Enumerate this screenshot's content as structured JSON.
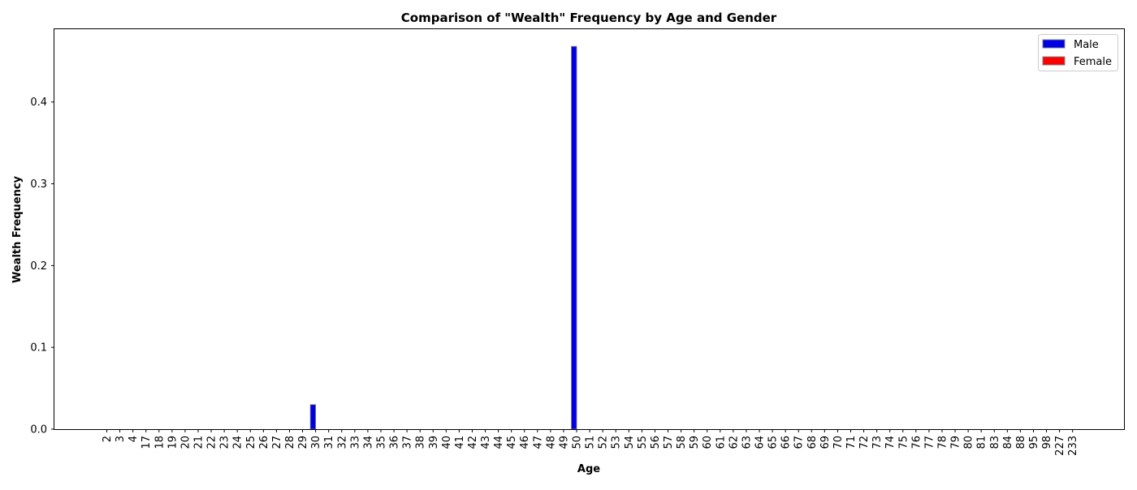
{
  "chart_data": {
    "type": "bar",
    "title": "Comparison of \"Wealth\" Frequency by Age and Gender",
    "xlabel": "Age",
    "ylabel": "Wealth Frequency",
    "ylim": [
      0,
      0.49
    ],
    "yticks": [
      "0.0",
      "0.1",
      "0.2",
      "0.3",
      "0.4"
    ],
    "categories": [
      "2",
      "3",
      "4",
      "17",
      "18",
      "19",
      "20",
      "21",
      "22",
      "23",
      "24",
      "25",
      "26",
      "27",
      "28",
      "29",
      "30",
      "31",
      "32",
      "33",
      "34",
      "35",
      "36",
      "37",
      "38",
      "39",
      "40",
      "41",
      "42",
      "43",
      "44",
      "45",
      "46",
      "47",
      "48",
      "49",
      "50",
      "51",
      "52",
      "53",
      "54",
      "55",
      "56",
      "57",
      "58",
      "59",
      "60",
      "61",
      "62",
      "63",
      "64",
      "65",
      "66",
      "67",
      "68",
      "69",
      "70",
      "71",
      "72",
      "73",
      "74",
      "75",
      "76",
      "77",
      "78",
      "79",
      "80",
      "81",
      "83",
      "84",
      "88",
      "95",
      "98",
      "227",
      "233"
    ],
    "series": [
      {
        "name": "Male",
        "color": "#0000e6",
        "values": [
          0,
          0,
          0,
          0,
          0,
          0,
          0,
          0,
          0,
          0,
          0,
          0,
          0,
          0,
          0,
          0,
          0.03,
          0,
          0,
          0,
          0,
          0,
          0,
          0,
          0,
          0,
          0,
          0,
          0,
          0,
          0,
          0,
          0,
          0,
          0,
          0,
          0.468,
          0,
          0,
          0,
          0,
          0,
          0,
          0,
          0,
          0,
          0,
          0,
          0,
          0,
          0,
          0,
          0,
          0,
          0,
          0,
          0,
          0,
          0,
          0,
          0,
          0,
          0,
          0,
          0,
          0,
          0,
          0,
          0,
          0,
          0,
          0,
          0,
          0,
          0
        ]
      },
      {
        "name": "Female",
        "color": "#ff0000",
        "values": [
          0,
          0,
          0,
          0,
          0,
          0,
          0,
          0,
          0,
          0,
          0,
          0,
          0,
          0,
          0,
          0,
          0,
          0,
          0,
          0,
          0,
          0,
          0,
          0,
          0,
          0,
          0,
          0,
          0,
          0,
          0,
          0,
          0,
          0,
          0,
          0,
          0,
          0,
          0,
          0,
          0,
          0,
          0,
          0,
          0,
          0,
          0,
          0,
          0,
          0,
          0,
          0,
          0,
          0,
          0,
          0,
          0,
          0,
          0,
          0,
          0,
          0,
          0,
          0,
          0,
          0,
          0,
          0,
          0,
          0,
          0,
          0,
          0,
          0,
          0
        ]
      }
    ],
    "grid": false,
    "legend_position": "top-right"
  }
}
